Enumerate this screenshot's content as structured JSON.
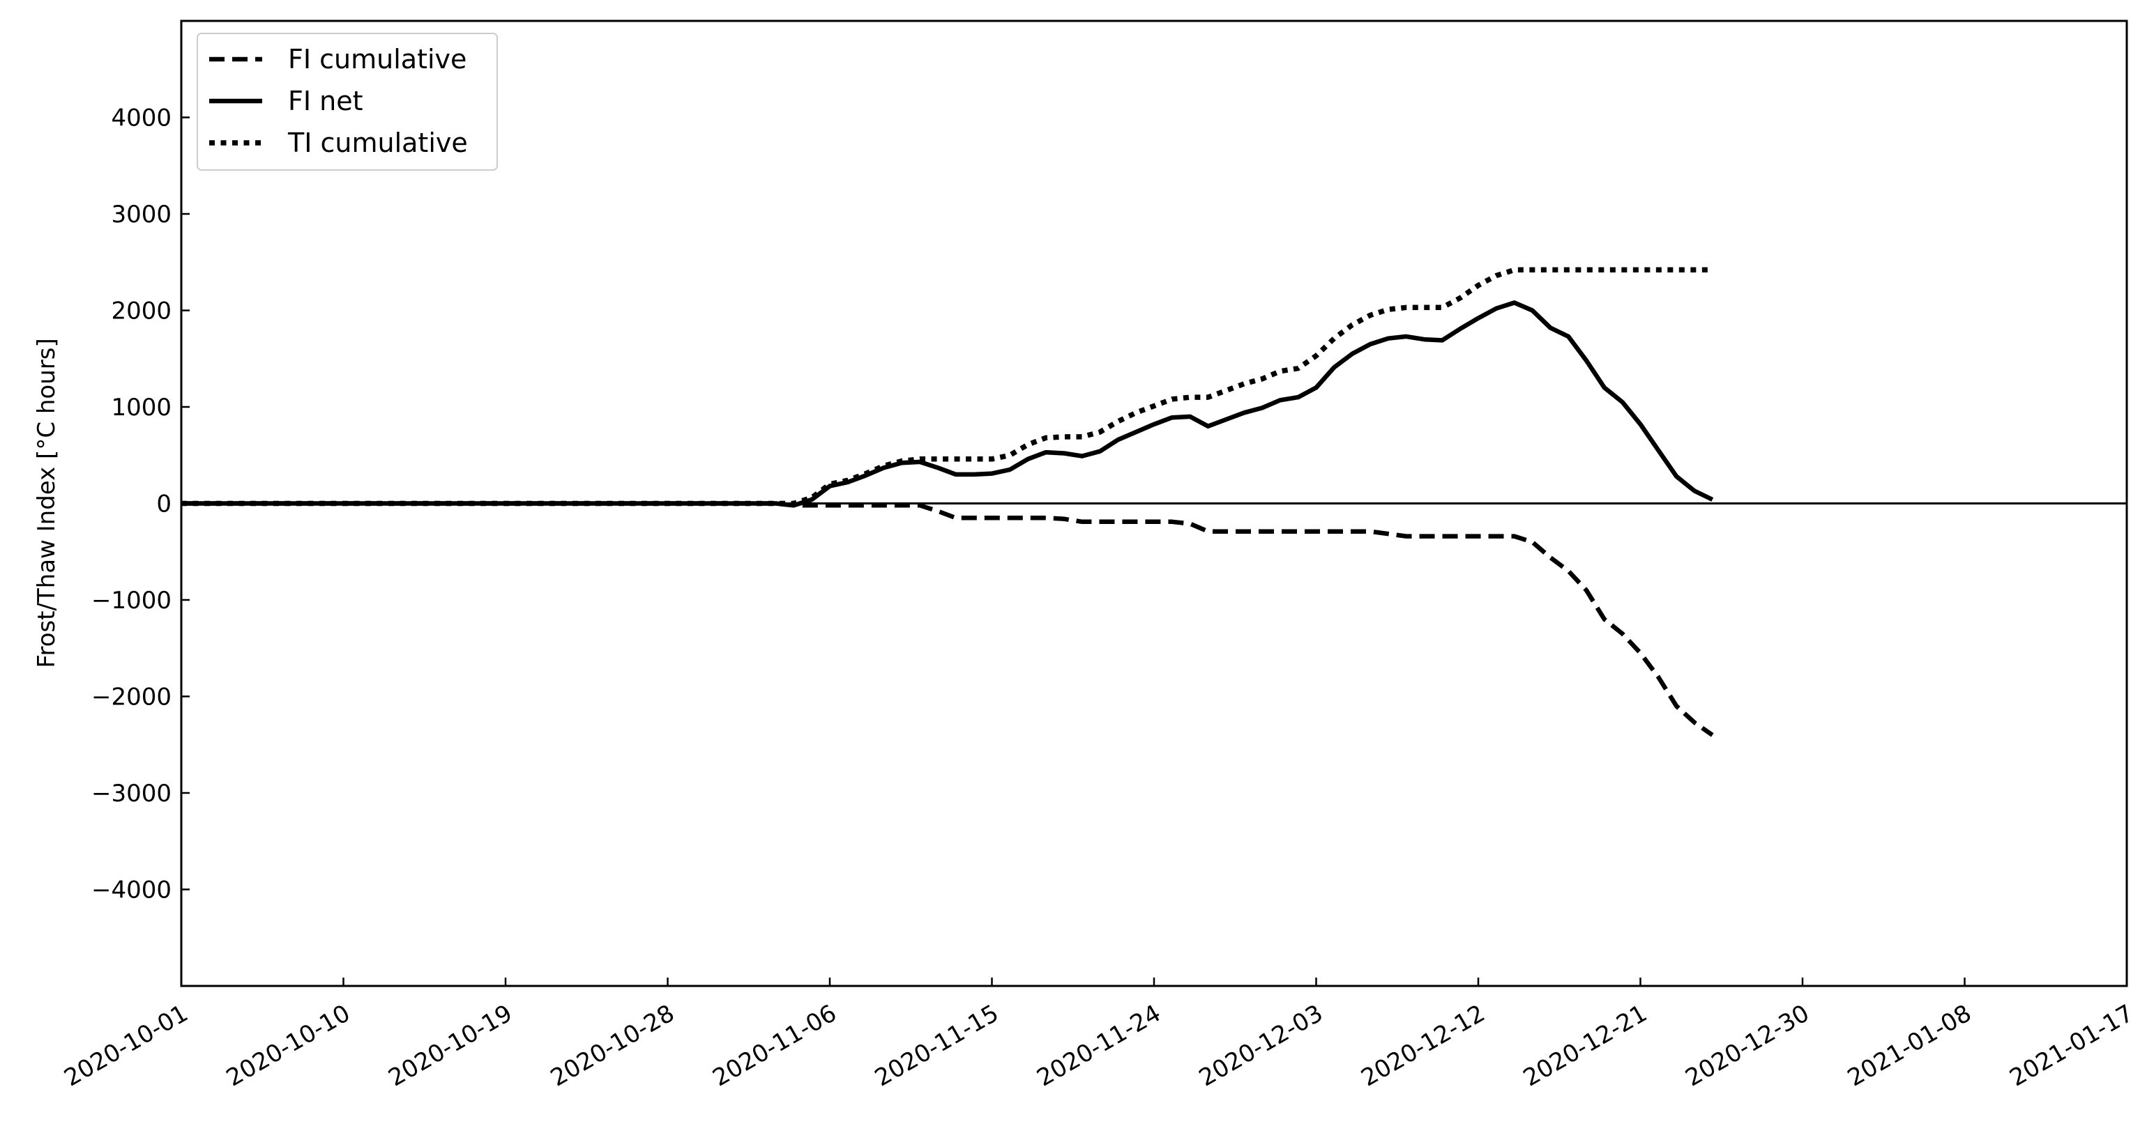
{
  "chart_data": {
    "type": "line",
    "title": "",
    "xlabel": "",
    "ylabel": "Frost/Thaw Index [°C hours]",
    "xlim": [
      "2020-10-01",
      "2021-01-17"
    ],
    "ylim": [
      -5000,
      5000
    ],
    "x_ticks": [
      "2020-10-01",
      "2020-10-10",
      "2020-10-19",
      "2020-10-28",
      "2020-11-06",
      "2020-11-15",
      "2020-11-24",
      "2020-12-03",
      "2020-12-12",
      "2020-12-21",
      "2020-12-30",
      "2021-01-08",
      "2021-01-17"
    ],
    "y_ticks": [
      -4000,
      -3000,
      -2000,
      -1000,
      0,
      1000,
      2000,
      3000,
      4000
    ],
    "y_tick_labels": [
      "−4000",
      "−3000",
      "−2000",
      "−1000",
      "0",
      "1000",
      "2000",
      "3000",
      "4000"
    ],
    "grid": false,
    "zero_line": true,
    "legend": "top-left",
    "series": [
      {
        "name": "FI cumulative",
        "style": "dashed",
        "points": [
          [
            "2020-10-01",
            0
          ],
          [
            "2020-11-03",
            0
          ],
          [
            "2020-11-04",
            -20
          ],
          [
            "2020-11-05",
            -20
          ],
          [
            "2020-11-10",
            -20
          ],
          [
            "2020-11-11",
            -20
          ],
          [
            "2020-11-12",
            -80
          ],
          [
            "2020-11-13",
            -150
          ],
          [
            "2020-11-18",
            -150
          ],
          [
            "2020-11-19",
            -160
          ],
          [
            "2020-11-20",
            -190
          ],
          [
            "2020-11-25",
            -190
          ],
          [
            "2020-11-26",
            -210
          ],
          [
            "2020-11-27",
            -290
          ],
          [
            "2020-12-06",
            -290
          ],
          [
            "2020-12-08",
            -340
          ],
          [
            "2020-12-14",
            -340
          ],
          [
            "2020-12-15",
            -400
          ],
          [
            "2020-12-16",
            -560
          ],
          [
            "2020-12-17",
            -700
          ],
          [
            "2020-12-18",
            -900
          ],
          [
            "2020-12-19",
            -1200
          ],
          [
            "2020-12-20",
            -1350
          ],
          [
            "2020-12-21",
            -1550
          ],
          [
            "2020-12-22",
            -1800
          ],
          [
            "2020-12-23",
            -2100
          ],
          [
            "2020-12-24",
            -2270
          ],
          [
            "2020-12-25",
            -2400
          ]
        ]
      },
      {
        "name": "FI net",
        "style": "solid",
        "points": [
          [
            "2020-10-01",
            0
          ],
          [
            "2020-11-03",
            0
          ],
          [
            "2020-11-04",
            -20
          ],
          [
            "2020-11-05",
            40
          ],
          [
            "2020-11-06",
            180
          ],
          [
            "2020-11-07",
            220
          ],
          [
            "2020-11-08",
            290
          ],
          [
            "2020-11-09",
            370
          ],
          [
            "2020-11-10",
            420
          ],
          [
            "2020-11-11",
            430
          ],
          [
            "2020-11-12",
            370
          ],
          [
            "2020-11-13",
            300
          ],
          [
            "2020-11-14",
            300
          ],
          [
            "2020-11-15",
            310
          ],
          [
            "2020-11-16",
            350
          ],
          [
            "2020-11-17",
            460
          ],
          [
            "2020-11-18",
            530
          ],
          [
            "2020-11-19",
            520
          ],
          [
            "2020-11-20",
            490
          ],
          [
            "2020-11-21",
            540
          ],
          [
            "2020-11-22",
            660
          ],
          [
            "2020-11-23",
            740
          ],
          [
            "2020-11-24",
            820
          ],
          [
            "2020-11-25",
            890
          ],
          [
            "2020-11-26",
            900
          ],
          [
            "2020-11-27",
            800
          ],
          [
            "2020-11-28",
            870
          ],
          [
            "2020-11-29",
            940
          ],
          [
            "2020-11-30",
            990
          ],
          [
            "2020-12-01",
            1070
          ],
          [
            "2020-12-02",
            1100
          ],
          [
            "2020-12-03",
            1200
          ],
          [
            "2020-12-04",
            1410
          ],
          [
            "2020-12-05",
            1550
          ],
          [
            "2020-12-06",
            1650
          ],
          [
            "2020-12-07",
            1710
          ],
          [
            "2020-12-08",
            1730
          ],
          [
            "2020-12-09",
            1700
          ],
          [
            "2020-12-10",
            1690
          ],
          [
            "2020-12-11",
            1810
          ],
          [
            "2020-12-12",
            1920
          ],
          [
            "2020-12-13",
            2020
          ],
          [
            "2020-12-14",
            2080
          ],
          [
            "2020-12-15",
            2000
          ],
          [
            "2020-12-16",
            1820
          ],
          [
            "2020-12-17",
            1730
          ],
          [
            "2020-12-18",
            1480
          ],
          [
            "2020-12-19",
            1200
          ],
          [
            "2020-12-20",
            1050
          ],
          [
            "2020-12-21",
            820
          ],
          [
            "2020-12-22",
            550
          ],
          [
            "2020-12-23",
            280
          ],
          [
            "2020-12-24",
            130
          ],
          [
            "2020-12-25",
            40
          ]
        ]
      },
      {
        "name": "TI cumulative",
        "style": "dotted",
        "points": [
          [
            "2020-10-01",
            0
          ],
          [
            "2020-11-03",
            0
          ],
          [
            "2020-11-04",
            0
          ],
          [
            "2020-11-05",
            60
          ],
          [
            "2020-11-06",
            200
          ],
          [
            "2020-11-07",
            240
          ],
          [
            "2020-11-08",
            310
          ],
          [
            "2020-11-09",
            390
          ],
          [
            "2020-11-10",
            440
          ],
          [
            "2020-11-11",
            460
          ],
          [
            "2020-11-12",
            460
          ],
          [
            "2020-11-13",
            460
          ],
          [
            "2020-11-14",
            460
          ],
          [
            "2020-11-15",
            460
          ],
          [
            "2020-11-16",
            500
          ],
          [
            "2020-11-17",
            610
          ],
          [
            "2020-11-18",
            680
          ],
          [
            "2020-11-19",
            690
          ],
          [
            "2020-11-20",
            690
          ],
          [
            "2020-11-21",
            740
          ],
          [
            "2020-11-22",
            850
          ],
          [
            "2020-11-23",
            940
          ],
          [
            "2020-11-24",
            1010
          ],
          [
            "2020-11-25",
            1080
          ],
          [
            "2020-11-26",
            1100
          ],
          [
            "2020-11-27",
            1100
          ],
          [
            "2020-11-28",
            1170
          ],
          [
            "2020-11-29",
            1240
          ],
          [
            "2020-11-30",
            1290
          ],
          [
            "2020-12-01",
            1370
          ],
          [
            "2020-12-02",
            1400
          ],
          [
            "2020-12-03",
            1530
          ],
          [
            "2020-12-04",
            1710
          ],
          [
            "2020-12-05",
            1850
          ],
          [
            "2020-12-06",
            1950
          ],
          [
            "2020-12-07",
            2010
          ],
          [
            "2020-12-08",
            2030
          ],
          [
            "2020-12-09",
            2030
          ],
          [
            "2020-12-10",
            2030
          ],
          [
            "2020-12-11",
            2130
          ],
          [
            "2020-12-12",
            2260
          ],
          [
            "2020-12-13",
            2360
          ],
          [
            "2020-12-14",
            2420
          ],
          [
            "2020-12-15",
            2420
          ],
          [
            "2020-12-25",
            2420
          ]
        ]
      }
    ]
  }
}
